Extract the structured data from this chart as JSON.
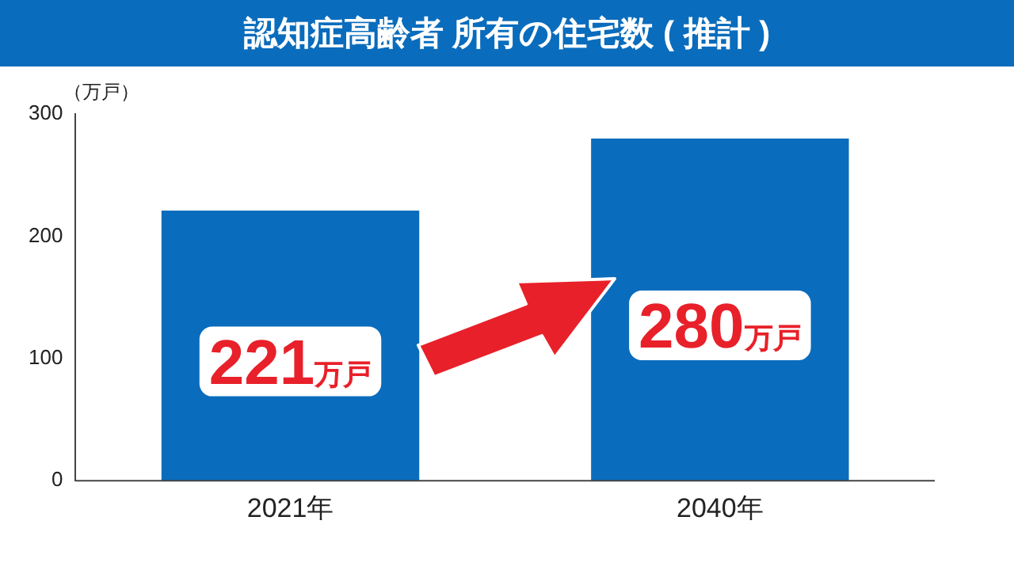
{
  "chart_data": {
    "type": "bar",
    "title": "認知症高齢者 所有の住宅数 ( 推計 )",
    "ylabel": "（万戸）",
    "categories": [
      "2021年",
      "2040年"
    ],
    "values": [
      221,
      280
    ],
    "color": "#0a6cbc",
    "value_labels": [
      "221万戸",
      "280万戸"
    ],
    "ylim": [
      0,
      300
    ],
    "yticks": [
      0,
      100,
      200,
      300
    ],
    "grid": false,
    "legend": false
  }
}
